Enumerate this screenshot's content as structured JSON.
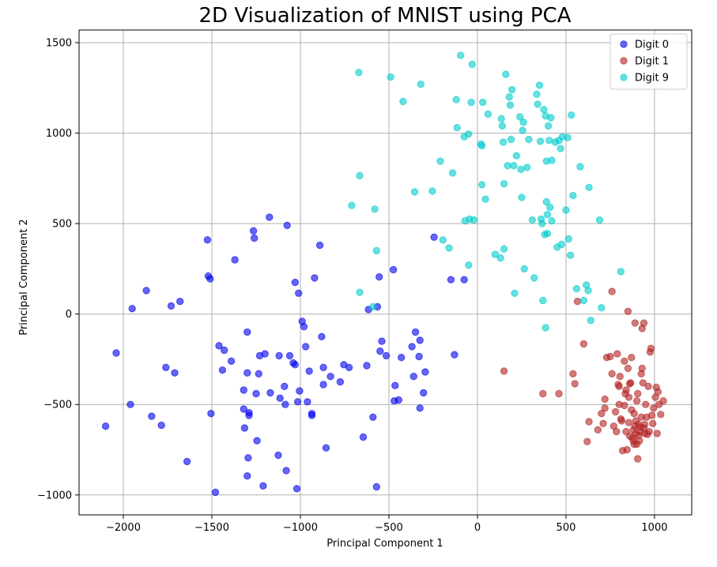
{
  "chart_data": {
    "type": "scatter",
    "title": "2D Visualization of MNIST using PCA",
    "xlabel": "Principal Component 1",
    "ylabel": "Principal Component 2",
    "xlim": [
      -2250,
      1210
    ],
    "ylim": [
      -1110,
      1570
    ],
    "xticks": [
      -2000,
      -1500,
      -1000,
      -500,
      0,
      500,
      1000
    ],
    "yticks": [
      -1000,
      -500,
      0,
      500,
      1000,
      1500
    ],
    "grid": true,
    "legend_position": "top-right",
    "series": [
      {
        "name": "Digit 0",
        "color": "#0000ee",
        "points": [
          [
            -2100,
            -620
          ],
          [
            -2040,
            -215
          ],
          [
            -1960,
            -500
          ],
          [
            -1950,
            30
          ],
          [
            -1870,
            130
          ],
          [
            -1840,
            -565
          ],
          [
            -1785,
            -615
          ],
          [
            -1760,
            -295
          ],
          [
            -1730,
            45
          ],
          [
            -1710,
            -325
          ],
          [
            -1680,
            70
          ],
          [
            -1640,
            -815
          ],
          [
            -1525,
            410
          ],
          [
            -1520,
            210
          ],
          [
            -1510,
            195
          ],
          [
            -1505,
            -550
          ],
          [
            -1480,
            -985
          ],
          [
            -1460,
            -175
          ],
          [
            -1440,
            -310
          ],
          [
            -1430,
            -200
          ],
          [
            -1390,
            -260
          ],
          [
            -1370,
            300
          ],
          [
            -1320,
            -525
          ],
          [
            -1320,
            -420
          ],
          [
            -1315,
            -630
          ],
          [
            -1300,
            -895
          ],
          [
            -1300,
            -325
          ],
          [
            -1300,
            -100
          ],
          [
            -1295,
            -795
          ],
          [
            -1290,
            -545
          ],
          [
            -1290,
            -560
          ],
          [
            -1265,
            460
          ],
          [
            -1260,
            420
          ],
          [
            -1250,
            -440
          ],
          [
            -1245,
            -700
          ],
          [
            -1235,
            -330
          ],
          [
            -1230,
            -230
          ],
          [
            -1210,
            -950
          ],
          [
            -1200,
            -220
          ],
          [
            -1175,
            535
          ],
          [
            -1170,
            -435
          ],
          [
            -1125,
            -780
          ],
          [
            -1120,
            -230
          ],
          [
            -1115,
            -465
          ],
          [
            -1090,
            -400
          ],
          [
            -1085,
            -500
          ],
          [
            -1080,
            -865
          ],
          [
            -1075,
            490
          ],
          [
            -1060,
            -230
          ],
          [
            -1040,
            -270
          ],
          [
            -1030,
            175
          ],
          [
            -1030,
            -280
          ],
          [
            -1020,
            -965
          ],
          [
            -1015,
            -485
          ],
          [
            -1010,
            115
          ],
          [
            -1005,
            -425
          ],
          [
            -990,
            -40
          ],
          [
            -980,
            -70
          ],
          [
            -970,
            -180
          ],
          [
            -960,
            -485
          ],
          [
            -950,
            -315
          ],
          [
            -935,
            -550
          ],
          [
            -935,
            -560
          ],
          [
            -920,
            200
          ],
          [
            -890,
            380
          ],
          [
            -880,
            -125
          ],
          [
            -870,
            -295
          ],
          [
            -870,
            -390
          ],
          [
            -855,
            -740
          ],
          [
            -830,
            -345
          ],
          [
            -775,
            -375
          ],
          [
            -755,
            -280
          ],
          [
            -725,
            -295
          ],
          [
            -625,
            -285
          ],
          [
            -615,
            25
          ],
          [
            -590,
            -570
          ],
          [
            -570,
            -955
          ],
          [
            -565,
            40
          ],
          [
            -555,
            205
          ],
          [
            -550,
            -205
          ],
          [
            -540,
            -150
          ],
          [
            -515,
            -230
          ],
          [
            -475,
            245
          ],
          [
            -470,
            -480
          ],
          [
            -465,
            -395
          ],
          [
            -445,
            -475
          ],
          [
            -430,
            -240
          ],
          [
            -370,
            -180
          ],
          [
            -360,
            -345
          ],
          [
            -350,
            -100
          ],
          [
            -330,
            -235
          ],
          [
            -325,
            -145
          ],
          [
            -325,
            -520
          ],
          [
            -305,
            -435
          ],
          [
            -295,
            -320
          ],
          [
            -245,
            425
          ],
          [
            -130,
            -225
          ],
          [
            -150,
            190
          ],
          [
            -75,
            190
          ],
          [
            -645,
            -680
          ]
        ]
      },
      {
        "name": "Digit 1",
        "color": "#b22222",
        "points": [
          [
            150,
            -315
          ],
          [
            370,
            -440
          ],
          [
            460,
            -440
          ],
          [
            540,
            -330
          ],
          [
            550,
            -385
          ],
          [
            565,
            70
          ],
          [
            600,
            -165
          ],
          [
            620,
            -705
          ],
          [
            630,
            -595
          ],
          [
            680,
            -640
          ],
          [
            700,
            -550
          ],
          [
            710,
            -605
          ],
          [
            720,
            -520
          ],
          [
            720,
            -470
          ],
          [
            730,
            -240
          ],
          [
            750,
            -235
          ],
          [
            760,
            -330
          ],
          [
            760,
            125
          ],
          [
            770,
            -620
          ],
          [
            780,
            -540
          ],
          [
            785,
            -650
          ],
          [
            790,
            -220
          ],
          [
            795,
            -390
          ],
          [
            800,
            -400
          ],
          [
            800,
            -500
          ],
          [
            805,
            -345
          ],
          [
            810,
            -580
          ],
          [
            815,
            -590
          ],
          [
            820,
            -755
          ],
          [
            830,
            -260
          ],
          [
            830,
            -505
          ],
          [
            835,
            -440
          ],
          [
            840,
            -650
          ],
          [
            840,
            -420
          ],
          [
            845,
            -750
          ],
          [
            850,
            -300
          ],
          [
            850,
            15
          ],
          [
            855,
            -600
          ],
          [
            860,
            -675
          ],
          [
            860,
            -385
          ],
          [
            865,
            -380
          ],
          [
            870,
            -240
          ],
          [
            870,
            -530
          ],
          [
            875,
            -685
          ],
          [
            880,
            -700
          ],
          [
            880,
            -640
          ],
          [
            885,
            -550
          ],
          [
            885,
            -720
          ],
          [
            890,
            -50
          ],
          [
            890,
            -620
          ],
          [
            895,
            -660
          ],
          [
            895,
            -590
          ],
          [
            900,
            -480
          ],
          [
            900,
            -720
          ],
          [
            905,
            -800
          ],
          [
            905,
            -440
          ],
          [
            910,
            -670
          ],
          [
            910,
            -610
          ],
          [
            915,
            -700
          ],
          [
            920,
            -650
          ],
          [
            920,
            -625
          ],
          [
            925,
            -570
          ],
          [
            925,
            -330
          ],
          [
            930,
            -300
          ],
          [
            935,
            -380
          ],
          [
            940,
            -50
          ],
          [
            940,
            -630
          ],
          [
            945,
            -610
          ],
          [
            945,
            -660
          ],
          [
            950,
            -500
          ],
          [
            955,
            -570
          ],
          [
            960,
            -665
          ],
          [
            965,
            -400
          ],
          [
            970,
            -650
          ],
          [
            975,
            -210
          ],
          [
            980,
            -190
          ],
          [
            985,
            -560
          ],
          [
            990,
            -605
          ],
          [
            995,
            -520
          ],
          [
            1005,
            -460
          ],
          [
            1010,
            -405
          ],
          [
            1015,
            -660
          ],
          [
            1020,
            -430
          ],
          [
            1025,
            -500
          ],
          [
            1035,
            -555
          ],
          [
            1050,
            -480
          ],
          [
            930,
            -80
          ],
          [
            855,
            -460
          ]
        ]
      },
      {
        "name": "Digit 9",
        "color": "#00cccc",
        "points": [
          [
            -670,
            1335
          ],
          [
            -665,
            765
          ],
          [
            -665,
            120
          ],
          [
            -710,
            600
          ],
          [
            -590,
            40
          ],
          [
            -580,
            580
          ],
          [
            -570,
            350
          ],
          [
            -490,
            1310
          ],
          [
            -420,
            1175
          ],
          [
            -355,
            675
          ],
          [
            -320,
            1270
          ],
          [
            -255,
            680
          ],
          [
            -210,
            845
          ],
          [
            -195,
            410
          ],
          [
            -160,
            365
          ],
          [
            -140,
            780
          ],
          [
            -120,
            1185
          ],
          [
            -115,
            1030
          ],
          [
            -95,
            1430
          ],
          [
            -75,
            980
          ],
          [
            -70,
            515
          ],
          [
            -50,
            995
          ],
          [
            -50,
            270
          ],
          [
            -45,
            525
          ],
          [
            -35,
            1170
          ],
          [
            -30,
            1380
          ],
          [
            -20,
            520
          ],
          [
            20,
            940
          ],
          [
            25,
            930
          ],
          [
            25,
            715
          ],
          [
            30,
            1170
          ],
          [
            45,
            635
          ],
          [
            60,
            1105
          ],
          [
            100,
            330
          ],
          [
            130,
            310
          ],
          [
            135,
            1080
          ],
          [
            140,
            1040
          ],
          [
            145,
            950
          ],
          [
            150,
            360
          ],
          [
            150,
            720
          ],
          [
            160,
            1325
          ],
          [
            170,
            820
          ],
          [
            180,
            1200
          ],
          [
            185,
            1155
          ],
          [
            190,
            965
          ],
          [
            195,
            1240
          ],
          [
            205,
            820
          ],
          [
            210,
            115
          ],
          [
            220,
            875
          ],
          [
            240,
            1090
          ],
          [
            245,
            800
          ],
          [
            250,
            645
          ],
          [
            255,
            1015
          ],
          [
            260,
            1060
          ],
          [
            265,
            250
          ],
          [
            280,
            810
          ],
          [
            290,
            965
          ],
          [
            310,
            520
          ],
          [
            320,
            200
          ],
          [
            335,
            1215
          ],
          [
            340,
            1160
          ],
          [
            350,
            1265
          ],
          [
            355,
            955
          ],
          [
            360,
            525
          ],
          [
            365,
            500
          ],
          [
            370,
            75
          ],
          [
            375,
            1130
          ],
          [
            380,
            440
          ],
          [
            385,
            -75
          ],
          [
            385,
            1095
          ],
          [
            390,
            620
          ],
          [
            390,
            845
          ],
          [
            395,
            550
          ],
          [
            395,
            445
          ],
          [
            400,
            1040
          ],
          [
            405,
            960
          ],
          [
            410,
            590
          ],
          [
            415,
            1085
          ],
          [
            420,
            515
          ],
          [
            420,
            850
          ],
          [
            440,
            950
          ],
          [
            450,
            370
          ],
          [
            460,
            960
          ],
          [
            470,
            915
          ],
          [
            475,
            385
          ],
          [
            480,
            980
          ],
          [
            500,
            575
          ],
          [
            510,
            975
          ],
          [
            515,
            415
          ],
          [
            525,
            325
          ],
          [
            530,
            1100
          ],
          [
            540,
            655
          ],
          [
            560,
            140
          ],
          [
            580,
            815
          ],
          [
            600,
            75
          ],
          [
            615,
            160
          ],
          [
            625,
            130
          ],
          [
            630,
            700
          ],
          [
            640,
            -35
          ],
          [
            690,
            520
          ],
          [
            700,
            35
          ],
          [
            810,
            235
          ]
        ]
      }
    ]
  }
}
